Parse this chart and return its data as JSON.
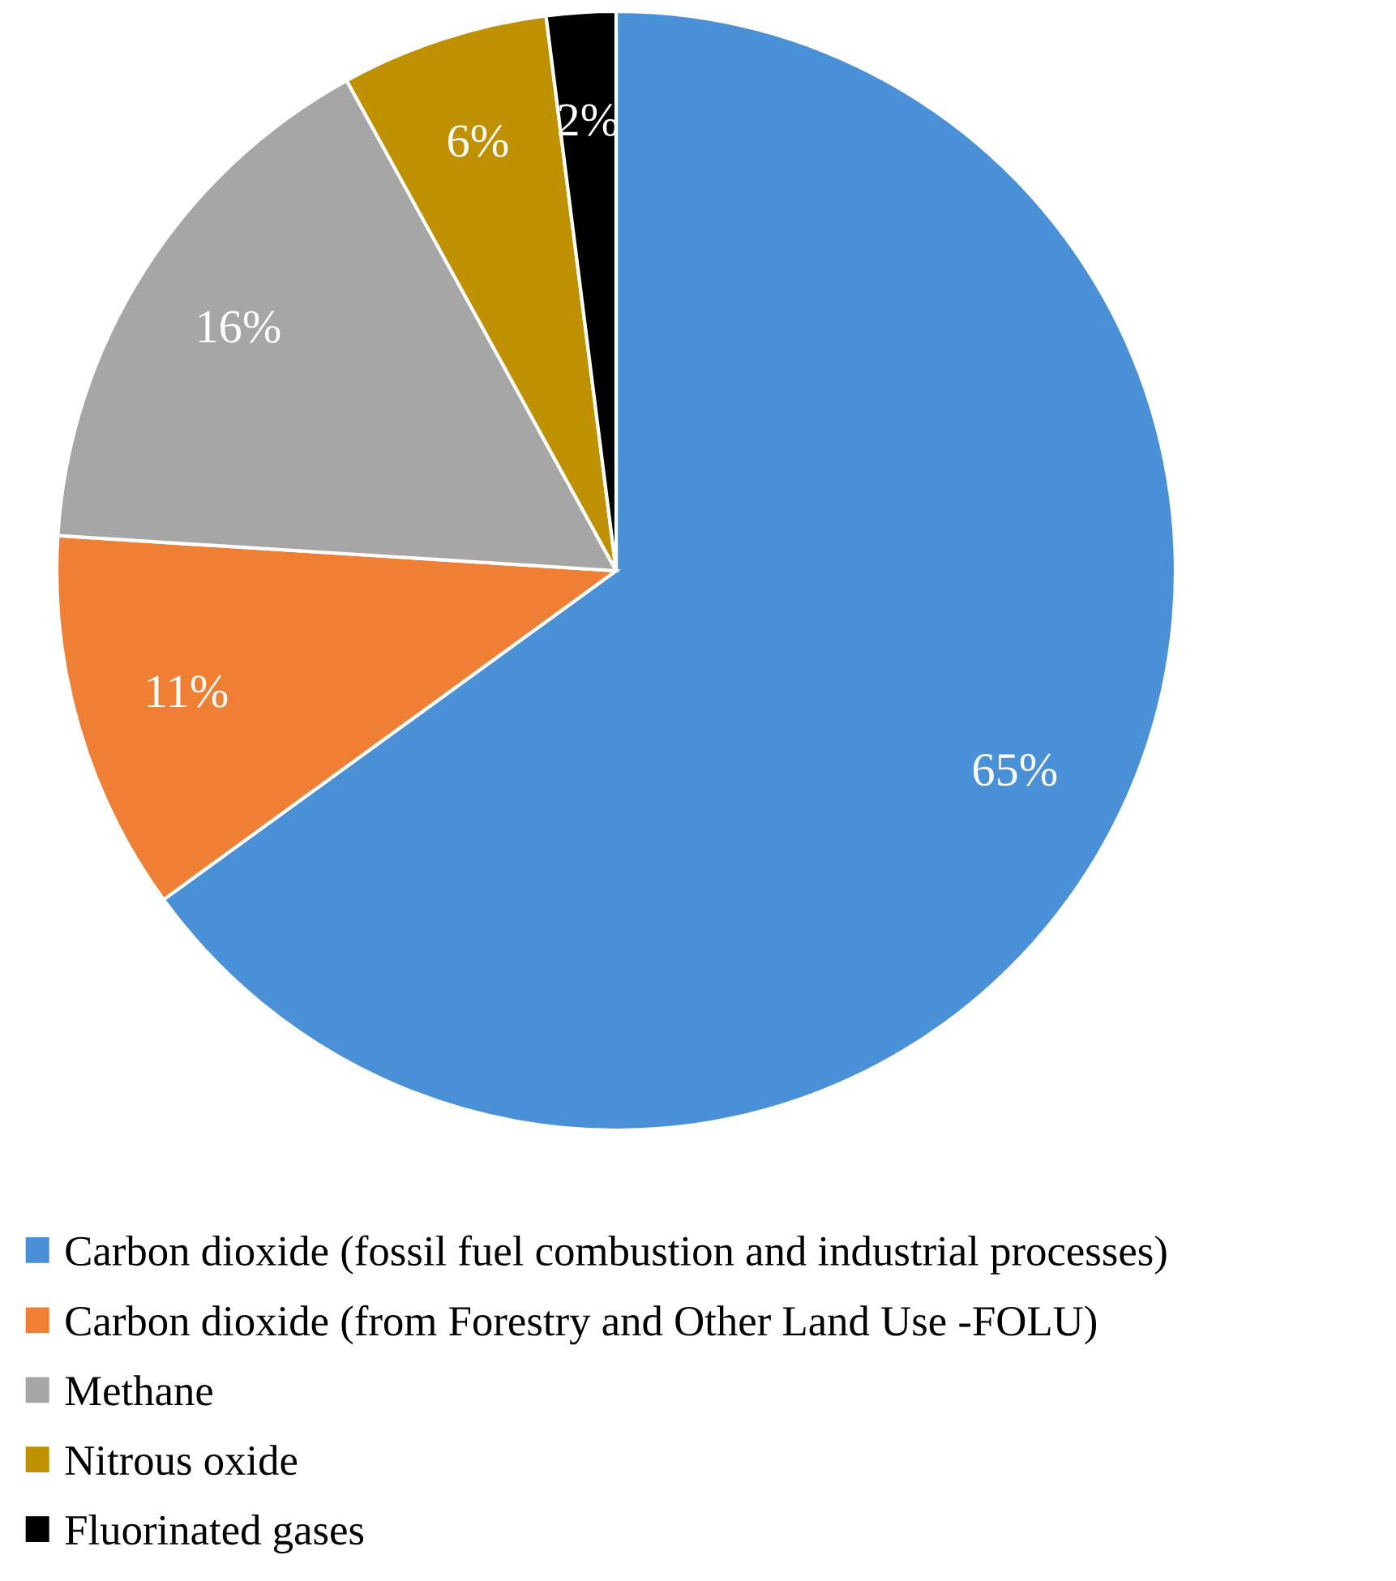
{
  "chart_data": {
    "type": "pie",
    "categories": [
      "Carbon dioxide (fossil fuel combustion and industrial processes)",
      "Carbon dioxide (from Forestry and Other Land Use -FOLU)",
      "Methane",
      "Nitrous oxide",
      "Fluorinated gases"
    ],
    "values": [
      65,
      11,
      16,
      6,
      2
    ],
    "value_labels": [
      "65%",
      "11%",
      "16%",
      "6%",
      "2%"
    ],
    "colors": [
      "#4a90d6",
      "#ef7f35",
      "#a6a6a6",
      "#bf9000",
      "#000000"
    ],
    "legend": "bottom"
  }
}
